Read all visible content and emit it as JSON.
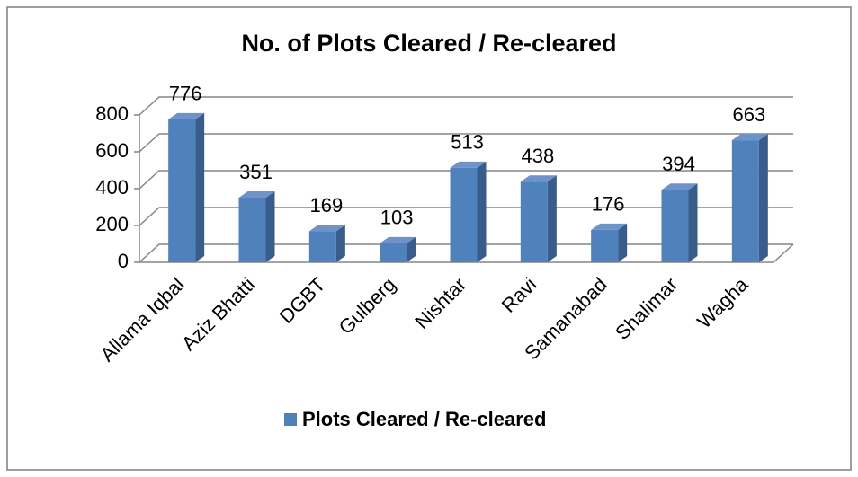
{
  "chart_data": {
    "type": "bar",
    "title": "No. of Plots Cleared / Re-cleared",
    "categories": [
      "Allama Iqbal",
      "Aziz Bhatti",
      "DGBT",
      "Gulberg",
      "Nishtar",
      "Ravi",
      "Samanabad",
      "Shalimar",
      "Wagha"
    ],
    "series": [
      {
        "name": "Plots Cleared / Re-cleared",
        "color": "#4f81bd",
        "values": [
          776,
          351,
          169,
          103,
          513,
          438,
          176,
          394,
          663
        ]
      }
    ],
    "ylim": [
      0,
      800
    ],
    "yticks": [
      0,
      200,
      400,
      600,
      800
    ],
    "grid": true,
    "legend": "bottom"
  }
}
